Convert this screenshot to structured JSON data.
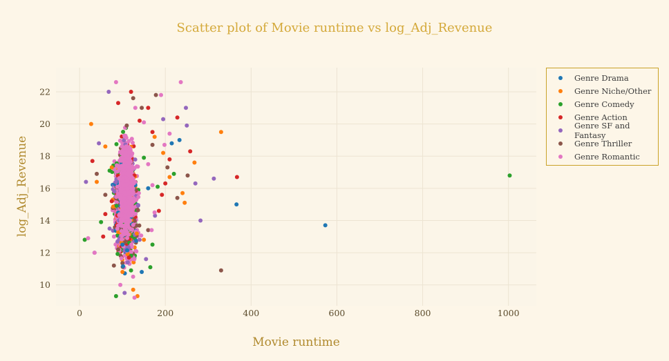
{
  "chart_data": {
    "type": "scatter",
    "title": "Scatter plot of Movie runtime vs log_Adj_Revenue",
    "xlabel": "Movie runtime",
    "ylabel": "log_Adj_Revenue",
    "xlim": [
      -55,
      1065
    ],
    "ylim": [
      8.7,
      23.5
    ],
    "x_ticks": [
      0,
      200,
      400,
      600,
      800,
      1000
    ],
    "y_ticks": [
      10,
      12,
      14,
      16,
      18,
      20,
      22
    ],
    "grid": true,
    "legend_position": "top-right",
    "series": [
      {
        "name": "Genre Drama",
        "color": "#1f77b4",
        "points": [
          [
            573,
            13.7
          ],
          [
            366,
            15.0
          ],
          [
            233,
            19.0
          ],
          [
            145,
            10.8
          ],
          [
            215,
            18.8
          ],
          [
            100,
            12.5
          ],
          [
            160,
            16.0
          ]
        ]
      },
      {
        "name": "Genre Niche/Other",
        "color": "#ff7f0e",
        "points": [
          [
            27,
            20.0
          ],
          [
            330,
            19.5
          ],
          [
            268,
            17.6
          ],
          [
            240,
            15.7
          ],
          [
            245,
            15.1
          ],
          [
            135,
            9.3
          ],
          [
            40,
            16.4
          ],
          [
            150,
            12.8
          ],
          [
            210,
            16.7
          ],
          [
            175,
            19.2
          ],
          [
            195,
            18.2
          ],
          [
            125,
            9.7
          ],
          [
            60,
            18.6
          ],
          [
            75,
            17.3
          ],
          [
            100,
            10.8
          ]
        ]
      },
      {
        "name": "Genre Comedy",
        "color": "#2ca02c",
        "points": [
          [
            1003,
            16.8
          ],
          [
            12,
            12.8
          ],
          [
            50,
            13.9
          ],
          [
            85,
            9.3
          ],
          [
            170,
            12.5
          ],
          [
            165,
            11.1
          ],
          [
            220,
            16.9
          ],
          [
            182,
            16.1
          ],
          [
            70,
            17.1
          ],
          [
            120,
            10.9
          ],
          [
            150,
            17.9
          ]
        ]
      },
      {
        "name": "Genre Action",
        "color": "#d62728",
        "points": [
          [
            367,
            16.7
          ],
          [
            258,
            18.3
          ],
          [
            228,
            20.4
          ],
          [
            30,
            17.7
          ],
          [
            55,
            13.0
          ],
          [
            192,
            15.6
          ],
          [
            185,
            14.6
          ],
          [
            75,
            15.2
          ],
          [
            160,
            21.0
          ],
          [
            210,
            17.8
          ],
          [
            140,
            20.2
          ],
          [
            90,
            21.3
          ],
          [
            115,
            11.7
          ],
          [
            170,
            19.5
          ],
          [
            200,
            16.3
          ],
          [
            60,
            14.4
          ],
          [
            120,
            22.0
          ]
        ]
      },
      {
        "name": "Genre SF and Fantasy",
        "color": "#9467bd",
        "points": [
          [
            313,
            16.6
          ],
          [
            282,
            14.0
          ],
          [
            248,
            21.0
          ],
          [
            270,
            16.3
          ],
          [
            15,
            16.4
          ],
          [
            35,
            12.0
          ],
          [
            68,
            22.0
          ],
          [
            70,
            13.5
          ],
          [
            195,
            20.3
          ],
          [
            176,
            14.3
          ],
          [
            250,
            19.9
          ],
          [
            45,
            18.8
          ],
          [
            155,
            11.6
          ],
          [
            140,
            12.8
          ],
          [
            105,
            9.5
          ]
        ]
      },
      {
        "name": "Genre Thriller",
        "color": "#8c564b",
        "points": [
          [
            330,
            10.9
          ],
          [
            252,
            16.8
          ],
          [
            228,
            15.4
          ],
          [
            178,
            21.8
          ],
          [
            80,
            11.2
          ],
          [
            205,
            17.3
          ],
          [
            145,
            21.0
          ],
          [
            90,
            12.2
          ],
          [
            60,
            15.6
          ],
          [
            110,
            19.9
          ],
          [
            160,
            13.4
          ],
          [
            125,
            21.6
          ],
          [
            40,
            16.9
          ],
          [
            170,
            18.7
          ]
        ]
      },
      {
        "name": "Genre Romantic",
        "color": "#e377c2",
        "points": [
          [
            236,
            22.6
          ],
          [
            85,
            22.6
          ],
          [
            190,
            21.8
          ],
          [
            20,
            12.9
          ],
          [
            35,
            12.0
          ],
          [
            168,
            13.4
          ],
          [
            128,
            9.2
          ],
          [
            198,
            18.7
          ],
          [
            170,
            16.2
          ],
          [
            150,
            20.1
          ],
          [
            95,
            10.0
          ],
          [
            130,
            21.0
          ],
          [
            210,
            19.4
          ],
          [
            175,
            14.5
          ],
          [
            160,
            17.5
          ]
        ]
      }
    ]
  }
}
